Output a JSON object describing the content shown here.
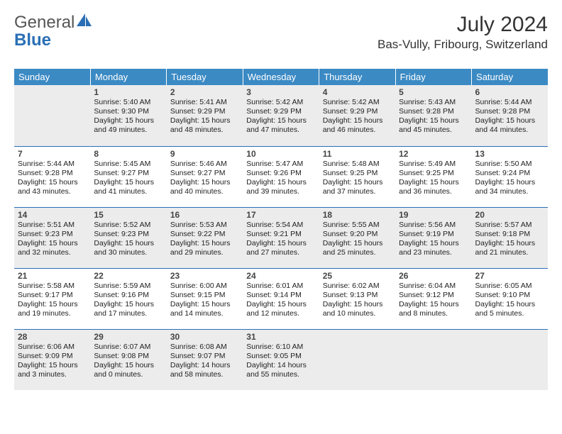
{
  "logo": {
    "word1": "General",
    "word2": "Blue"
  },
  "title": "July 2024",
  "location": "Bas-Vully, Fribourg, Switzerland",
  "colors": {
    "header_bg": "#3b8ac4",
    "header_text": "#ffffff",
    "divider": "#2a6fb5",
    "row_odd_bg": "#ececec",
    "row_even_bg": "#ffffff",
    "daynum_color": "#444444",
    "body_text": "#222222",
    "logo_gray": "#555555",
    "logo_blue": "#2a6fb5"
  },
  "weekdays": [
    "Sunday",
    "Monday",
    "Tuesday",
    "Wednesday",
    "Thursday",
    "Friday",
    "Saturday"
  ],
  "weeks": [
    [
      null,
      {
        "n": "1",
        "sr": "5:40 AM",
        "ss": "9:30 PM",
        "dl": "15 hours and 49 minutes."
      },
      {
        "n": "2",
        "sr": "5:41 AM",
        "ss": "9:29 PM",
        "dl": "15 hours and 48 minutes."
      },
      {
        "n": "3",
        "sr": "5:42 AM",
        "ss": "9:29 PM",
        "dl": "15 hours and 47 minutes."
      },
      {
        "n": "4",
        "sr": "5:42 AM",
        "ss": "9:29 PM",
        "dl": "15 hours and 46 minutes."
      },
      {
        "n": "5",
        "sr": "5:43 AM",
        "ss": "9:28 PM",
        "dl": "15 hours and 45 minutes."
      },
      {
        "n": "6",
        "sr": "5:44 AM",
        "ss": "9:28 PM",
        "dl": "15 hours and 44 minutes."
      }
    ],
    [
      {
        "n": "7",
        "sr": "5:44 AM",
        "ss": "9:28 PM",
        "dl": "15 hours and 43 minutes."
      },
      {
        "n": "8",
        "sr": "5:45 AM",
        "ss": "9:27 PM",
        "dl": "15 hours and 41 minutes."
      },
      {
        "n": "9",
        "sr": "5:46 AM",
        "ss": "9:27 PM",
        "dl": "15 hours and 40 minutes."
      },
      {
        "n": "10",
        "sr": "5:47 AM",
        "ss": "9:26 PM",
        "dl": "15 hours and 39 minutes."
      },
      {
        "n": "11",
        "sr": "5:48 AM",
        "ss": "9:25 PM",
        "dl": "15 hours and 37 minutes."
      },
      {
        "n": "12",
        "sr": "5:49 AM",
        "ss": "9:25 PM",
        "dl": "15 hours and 36 minutes."
      },
      {
        "n": "13",
        "sr": "5:50 AM",
        "ss": "9:24 PM",
        "dl": "15 hours and 34 minutes."
      }
    ],
    [
      {
        "n": "14",
        "sr": "5:51 AM",
        "ss": "9:23 PM",
        "dl": "15 hours and 32 minutes."
      },
      {
        "n": "15",
        "sr": "5:52 AM",
        "ss": "9:23 PM",
        "dl": "15 hours and 30 minutes."
      },
      {
        "n": "16",
        "sr": "5:53 AM",
        "ss": "9:22 PM",
        "dl": "15 hours and 29 minutes."
      },
      {
        "n": "17",
        "sr": "5:54 AM",
        "ss": "9:21 PM",
        "dl": "15 hours and 27 minutes."
      },
      {
        "n": "18",
        "sr": "5:55 AM",
        "ss": "9:20 PM",
        "dl": "15 hours and 25 minutes."
      },
      {
        "n": "19",
        "sr": "5:56 AM",
        "ss": "9:19 PM",
        "dl": "15 hours and 23 minutes."
      },
      {
        "n": "20",
        "sr": "5:57 AM",
        "ss": "9:18 PM",
        "dl": "15 hours and 21 minutes."
      }
    ],
    [
      {
        "n": "21",
        "sr": "5:58 AM",
        "ss": "9:17 PM",
        "dl": "15 hours and 19 minutes."
      },
      {
        "n": "22",
        "sr": "5:59 AM",
        "ss": "9:16 PM",
        "dl": "15 hours and 17 minutes."
      },
      {
        "n": "23",
        "sr": "6:00 AM",
        "ss": "9:15 PM",
        "dl": "15 hours and 14 minutes."
      },
      {
        "n": "24",
        "sr": "6:01 AM",
        "ss": "9:14 PM",
        "dl": "15 hours and 12 minutes."
      },
      {
        "n": "25",
        "sr": "6:02 AM",
        "ss": "9:13 PM",
        "dl": "15 hours and 10 minutes."
      },
      {
        "n": "26",
        "sr": "6:04 AM",
        "ss": "9:12 PM",
        "dl": "15 hours and 8 minutes."
      },
      {
        "n": "27",
        "sr": "6:05 AM",
        "ss": "9:10 PM",
        "dl": "15 hours and 5 minutes."
      }
    ],
    [
      {
        "n": "28",
        "sr": "6:06 AM",
        "ss": "9:09 PM",
        "dl": "15 hours and 3 minutes."
      },
      {
        "n": "29",
        "sr": "6:07 AM",
        "ss": "9:08 PM",
        "dl": "15 hours and 0 minutes."
      },
      {
        "n": "30",
        "sr": "6:08 AM",
        "ss": "9:07 PM",
        "dl": "14 hours and 58 minutes."
      },
      {
        "n": "31",
        "sr": "6:10 AM",
        "ss": "9:05 PM",
        "dl": "14 hours and 55 minutes."
      },
      null,
      null,
      null
    ]
  ],
  "labels": {
    "sunrise": "Sunrise:",
    "sunset": "Sunset:",
    "daylight": "Daylight:"
  }
}
